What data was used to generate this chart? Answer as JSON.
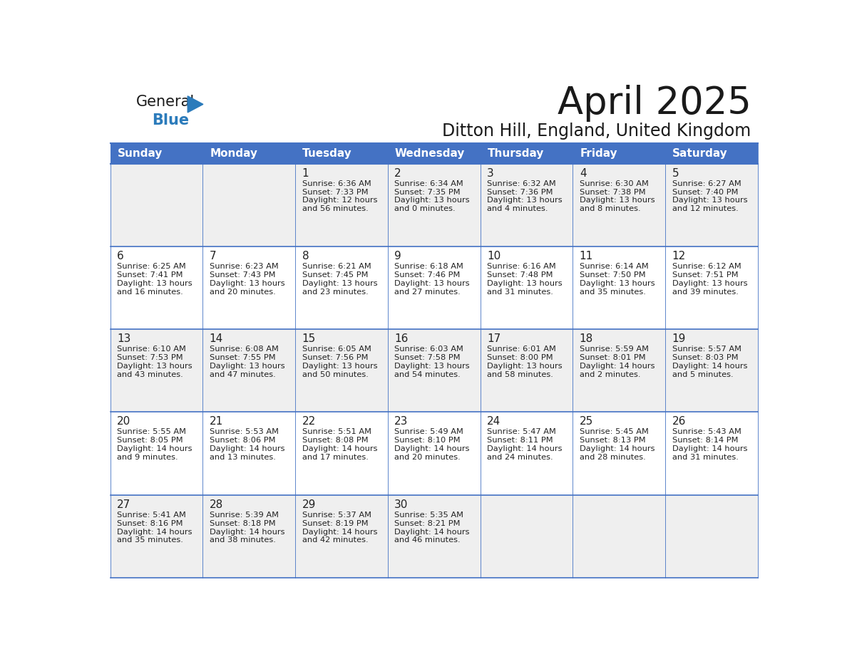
{
  "title": "April 2025",
  "subtitle": "Ditton Hill, England, United Kingdom",
  "header_bg": "#4472C4",
  "header_text_color": "#FFFFFF",
  "cell_bg_odd": "#EFEFEF",
  "cell_bg_even": "#FFFFFF",
  "day_headers": [
    "Sunday",
    "Monday",
    "Tuesday",
    "Wednesday",
    "Thursday",
    "Friday",
    "Saturday"
  ],
  "grid_line_color": "#4472C4",
  "day_number_color": "#222222",
  "cell_text_color": "#222222",
  "logo_general_color": "#1a1a1a",
  "logo_blue_color": "#2B7BBB",
  "logo_triangle_color": "#2B7BBB",
  "title_color": "#1a1a1a",
  "subtitle_color": "#1a1a1a",
  "weeks": [
    [
      {
        "day": "",
        "sunrise": "",
        "sunset": "",
        "daylight": ""
      },
      {
        "day": "",
        "sunrise": "",
        "sunset": "",
        "daylight": ""
      },
      {
        "day": "1",
        "sunrise": "Sunrise: 6:36 AM",
        "sunset": "Sunset: 7:33 PM",
        "daylight": "Daylight: 12 hours\nand 56 minutes."
      },
      {
        "day": "2",
        "sunrise": "Sunrise: 6:34 AM",
        "sunset": "Sunset: 7:35 PM",
        "daylight": "Daylight: 13 hours\nand 0 minutes."
      },
      {
        "day": "3",
        "sunrise": "Sunrise: 6:32 AM",
        "sunset": "Sunset: 7:36 PM",
        "daylight": "Daylight: 13 hours\nand 4 minutes."
      },
      {
        "day": "4",
        "sunrise": "Sunrise: 6:30 AM",
        "sunset": "Sunset: 7:38 PM",
        "daylight": "Daylight: 13 hours\nand 8 minutes."
      },
      {
        "day": "5",
        "sunrise": "Sunrise: 6:27 AM",
        "sunset": "Sunset: 7:40 PM",
        "daylight": "Daylight: 13 hours\nand 12 minutes."
      }
    ],
    [
      {
        "day": "6",
        "sunrise": "Sunrise: 6:25 AM",
        "sunset": "Sunset: 7:41 PM",
        "daylight": "Daylight: 13 hours\nand 16 minutes."
      },
      {
        "day": "7",
        "sunrise": "Sunrise: 6:23 AM",
        "sunset": "Sunset: 7:43 PM",
        "daylight": "Daylight: 13 hours\nand 20 minutes."
      },
      {
        "day": "8",
        "sunrise": "Sunrise: 6:21 AM",
        "sunset": "Sunset: 7:45 PM",
        "daylight": "Daylight: 13 hours\nand 23 minutes."
      },
      {
        "day": "9",
        "sunrise": "Sunrise: 6:18 AM",
        "sunset": "Sunset: 7:46 PM",
        "daylight": "Daylight: 13 hours\nand 27 minutes."
      },
      {
        "day": "10",
        "sunrise": "Sunrise: 6:16 AM",
        "sunset": "Sunset: 7:48 PM",
        "daylight": "Daylight: 13 hours\nand 31 minutes."
      },
      {
        "day": "11",
        "sunrise": "Sunrise: 6:14 AM",
        "sunset": "Sunset: 7:50 PM",
        "daylight": "Daylight: 13 hours\nand 35 minutes."
      },
      {
        "day": "12",
        "sunrise": "Sunrise: 6:12 AM",
        "sunset": "Sunset: 7:51 PM",
        "daylight": "Daylight: 13 hours\nand 39 minutes."
      }
    ],
    [
      {
        "day": "13",
        "sunrise": "Sunrise: 6:10 AM",
        "sunset": "Sunset: 7:53 PM",
        "daylight": "Daylight: 13 hours\nand 43 minutes."
      },
      {
        "day": "14",
        "sunrise": "Sunrise: 6:08 AM",
        "sunset": "Sunset: 7:55 PM",
        "daylight": "Daylight: 13 hours\nand 47 minutes."
      },
      {
        "day": "15",
        "sunrise": "Sunrise: 6:05 AM",
        "sunset": "Sunset: 7:56 PM",
        "daylight": "Daylight: 13 hours\nand 50 minutes."
      },
      {
        "day": "16",
        "sunrise": "Sunrise: 6:03 AM",
        "sunset": "Sunset: 7:58 PM",
        "daylight": "Daylight: 13 hours\nand 54 minutes."
      },
      {
        "day": "17",
        "sunrise": "Sunrise: 6:01 AM",
        "sunset": "Sunset: 8:00 PM",
        "daylight": "Daylight: 13 hours\nand 58 minutes."
      },
      {
        "day": "18",
        "sunrise": "Sunrise: 5:59 AM",
        "sunset": "Sunset: 8:01 PM",
        "daylight": "Daylight: 14 hours\nand 2 minutes."
      },
      {
        "day": "19",
        "sunrise": "Sunrise: 5:57 AM",
        "sunset": "Sunset: 8:03 PM",
        "daylight": "Daylight: 14 hours\nand 5 minutes."
      }
    ],
    [
      {
        "day": "20",
        "sunrise": "Sunrise: 5:55 AM",
        "sunset": "Sunset: 8:05 PM",
        "daylight": "Daylight: 14 hours\nand 9 minutes."
      },
      {
        "day": "21",
        "sunrise": "Sunrise: 5:53 AM",
        "sunset": "Sunset: 8:06 PM",
        "daylight": "Daylight: 14 hours\nand 13 minutes."
      },
      {
        "day": "22",
        "sunrise": "Sunrise: 5:51 AM",
        "sunset": "Sunset: 8:08 PM",
        "daylight": "Daylight: 14 hours\nand 17 minutes."
      },
      {
        "day": "23",
        "sunrise": "Sunrise: 5:49 AM",
        "sunset": "Sunset: 8:10 PM",
        "daylight": "Daylight: 14 hours\nand 20 minutes."
      },
      {
        "day": "24",
        "sunrise": "Sunrise: 5:47 AM",
        "sunset": "Sunset: 8:11 PM",
        "daylight": "Daylight: 14 hours\nand 24 minutes."
      },
      {
        "day": "25",
        "sunrise": "Sunrise: 5:45 AM",
        "sunset": "Sunset: 8:13 PM",
        "daylight": "Daylight: 14 hours\nand 28 minutes."
      },
      {
        "day": "26",
        "sunrise": "Sunrise: 5:43 AM",
        "sunset": "Sunset: 8:14 PM",
        "daylight": "Daylight: 14 hours\nand 31 minutes."
      }
    ],
    [
      {
        "day": "27",
        "sunrise": "Sunrise: 5:41 AM",
        "sunset": "Sunset: 8:16 PM",
        "daylight": "Daylight: 14 hours\nand 35 minutes."
      },
      {
        "day": "28",
        "sunrise": "Sunrise: 5:39 AM",
        "sunset": "Sunset: 8:18 PM",
        "daylight": "Daylight: 14 hours\nand 38 minutes."
      },
      {
        "day": "29",
        "sunrise": "Sunrise: 5:37 AM",
        "sunset": "Sunset: 8:19 PM",
        "daylight": "Daylight: 14 hours\nand 42 minutes."
      },
      {
        "day": "30",
        "sunrise": "Sunrise: 5:35 AM",
        "sunset": "Sunset: 8:21 PM",
        "daylight": "Daylight: 14 hours\nand 46 minutes."
      },
      {
        "day": "",
        "sunrise": "",
        "sunset": "",
        "daylight": ""
      },
      {
        "day": "",
        "sunrise": "",
        "sunset": "",
        "daylight": ""
      },
      {
        "day": "",
        "sunrise": "",
        "sunset": "",
        "daylight": ""
      }
    ]
  ]
}
